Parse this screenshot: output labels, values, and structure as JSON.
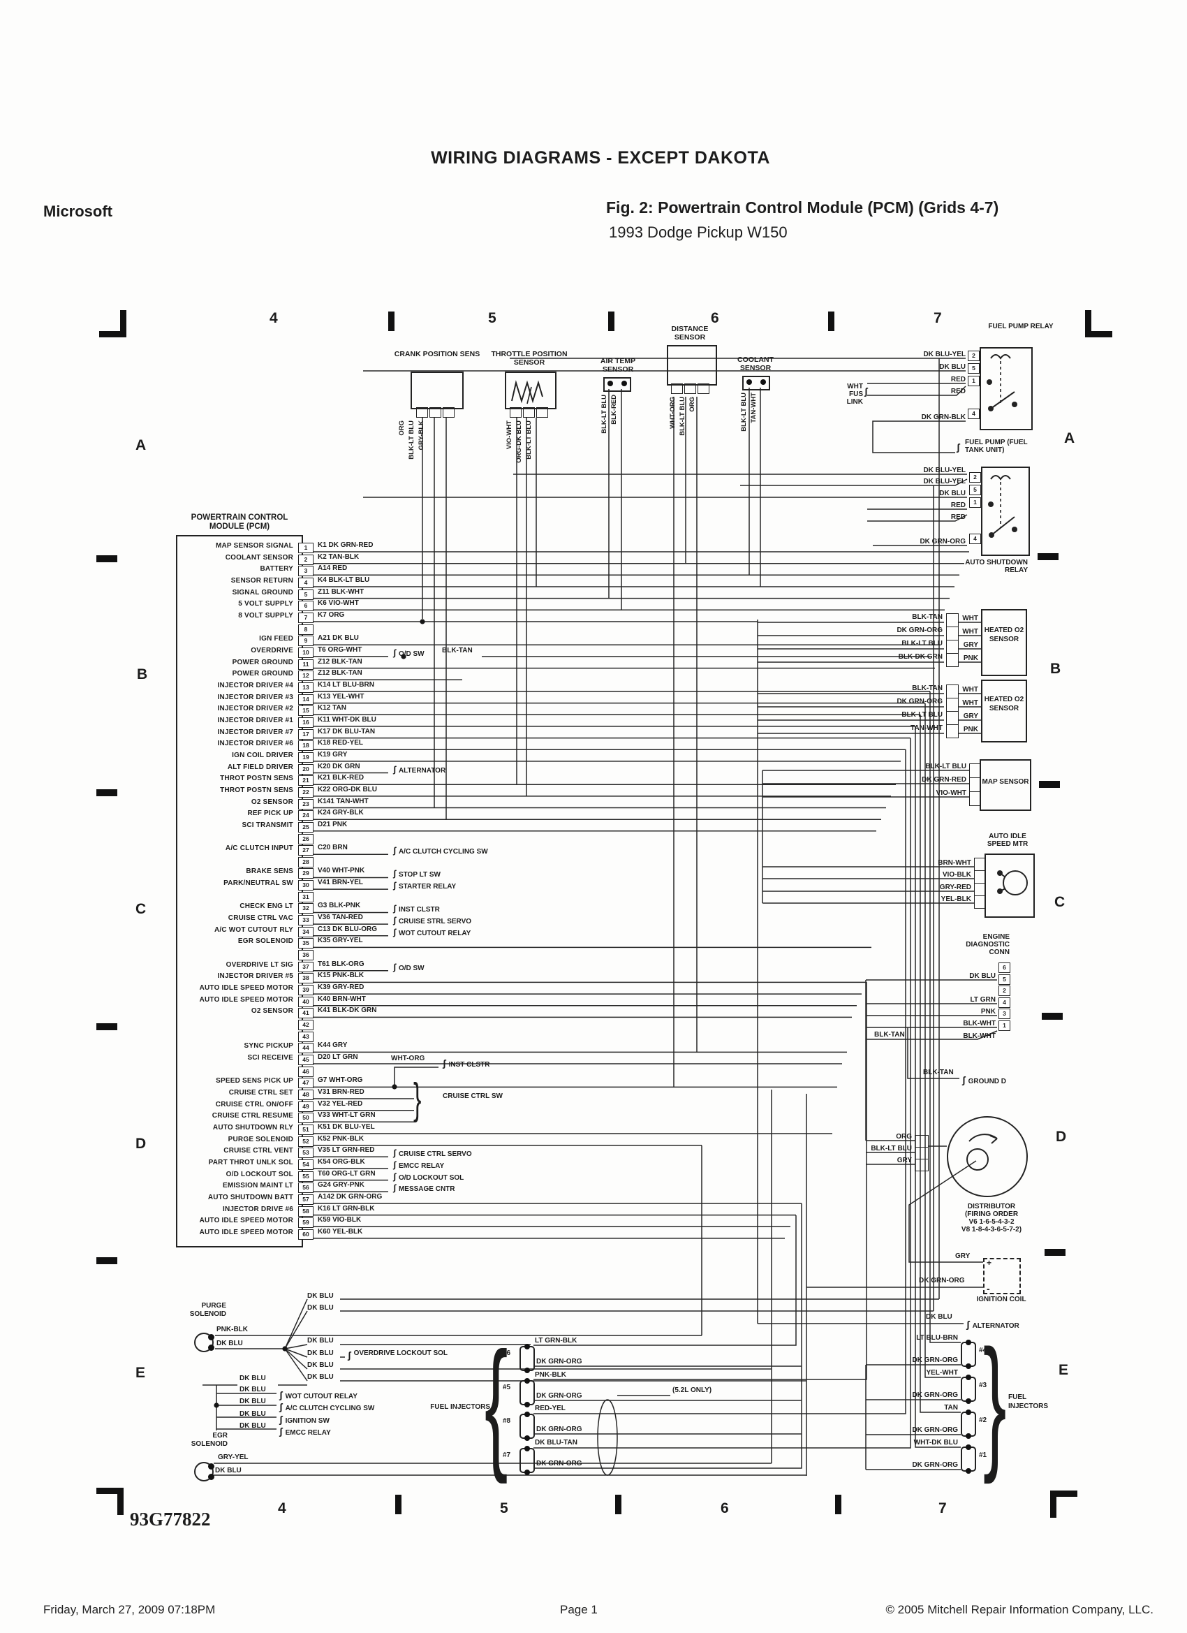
{
  "header": {
    "section_title": "WIRING DIAGRAMS - EXCEPT DAKOTA",
    "vendor": "Microsoft",
    "figure_title": "Fig. 2: Powertrain Control Module (PCM) (Grids 4-7)",
    "figure_subtitle": "1993 Dodge Pickup W150"
  },
  "footer": {
    "printed": "Friday, March 27, 2009  07:18PM",
    "page": "Page 1",
    "copyright": "© 2005 Mitchell Repair Information Company, LLC."
  },
  "diagram": {
    "doc_number": "93G77822",
    "grid": {
      "top": [
        "4",
        "5",
        "6",
        "7"
      ],
      "bottom": [
        "4",
        "5",
        "6",
        "7"
      ],
      "left": [
        "A",
        "B",
        "C",
        "D",
        "E"
      ],
      "right": [
        "A",
        "B",
        "C",
        "D",
        "E"
      ]
    },
    "pcm": {
      "title": "POWERTRAIN CONTROL MODULE (PCM)",
      "od_extra_wire": "BLK-TAN",
      "speed_branch": {
        "wire": "WHT-ORG",
        "dest": "INST CLSTR"
      },
      "cruise_sw_dest": "CRUISE CTRL SW",
      "pins": [
        {
          "n": "1",
          "label": "MAP SENSOR SIGNAL",
          "wire": "K1 DK GRN-RED",
          "dest": ""
        },
        {
          "n": "2",
          "label": "COOLANT SENSOR",
          "wire": "K2 TAN-BLK",
          "dest": ""
        },
        {
          "n": "3",
          "label": "BATTERY",
          "wire": "A14 RED",
          "dest": ""
        },
        {
          "n": "4",
          "label": "SENSOR RETURN",
          "wire": "K4 BLK-LT BLU",
          "dest": ""
        },
        {
          "n": "5",
          "label": "SIGNAL GROUND",
          "wire": "Z11 BLK-WHT",
          "dest": ""
        },
        {
          "n": "6",
          "label": "5 VOLT SUPPLY",
          "wire": "K6 VIO-WHT",
          "dest": ""
        },
        {
          "n": "7",
          "label": "8 VOLT SUPPLY",
          "wire": "K7 ORG",
          "dest": ""
        },
        {
          "n": "8",
          "label": "",
          "wire": "",
          "dest": ""
        },
        {
          "n": "9",
          "label": "IGN FEED",
          "wire": "A21 DK BLU",
          "dest": ""
        },
        {
          "n": "10",
          "label": "OVERDRIVE",
          "wire": "T6 ORG-WHT",
          "dest": "O/D SW"
        },
        {
          "n": "11",
          "label": "POWER GROUND",
          "wire": "Z12 BLK-TAN",
          "dest": ""
        },
        {
          "n": "12",
          "label": "POWER GROUND",
          "wire": "Z12 BLK-TAN",
          "dest": ""
        },
        {
          "n": "13",
          "label": "INJECTOR DRIVER #4",
          "wire": "K14 LT BLU-BRN",
          "dest": ""
        },
        {
          "n": "14",
          "label": "INJECTOR DRIVER #3",
          "wire": "K13 YEL-WHT",
          "dest": ""
        },
        {
          "n": "15",
          "label": "INJECTOR DRIVER #2",
          "wire": "K12 TAN",
          "dest": ""
        },
        {
          "n": "16",
          "label": "INJECTOR DRIVER #1",
          "wire": "K11 WHT-DK BLU",
          "dest": ""
        },
        {
          "n": "17",
          "label": "INJECTOR DRIVER #7",
          "wire": "K17 DK BLU-TAN",
          "dest": ""
        },
        {
          "n": "18",
          "label": "INJECTOR DRIVER #6",
          "wire": "K18 RED-YEL",
          "dest": ""
        },
        {
          "n": "19",
          "label": "IGN COIL DRIVER",
          "wire": "K19 GRY",
          "dest": ""
        },
        {
          "n": "20",
          "label": "ALT FIELD DRIVER",
          "wire": "K20 DK GRN",
          "dest": "ALTERNATOR"
        },
        {
          "n": "21",
          "label": "THROT POSTN SENS",
          "wire": "K21 BLK-RED",
          "dest": ""
        },
        {
          "n": "22",
          "label": "THROT POSTN SENS",
          "wire": "K22 ORG-DK BLU",
          "dest": ""
        },
        {
          "n": "23",
          "label": "O2 SENSOR",
          "wire": "K141 TAN-WHT",
          "dest": ""
        },
        {
          "n": "24",
          "label": "REF PICK UP",
          "wire": "K24 GRY-BLK",
          "dest": ""
        },
        {
          "n": "25",
          "label": "SCI TRANSMIT",
          "wire": "D21 PNK",
          "dest": ""
        },
        {
          "n": "26",
          "label": "",
          "wire": "",
          "dest": ""
        },
        {
          "n": "27",
          "label": "A/C CLUTCH INPUT",
          "wire": "C20 BRN",
          "dest": "A/C CLUTCH CYCLING SW"
        },
        {
          "n": "28",
          "label": "",
          "wire": "",
          "dest": ""
        },
        {
          "n": "29",
          "label": "BRAKE SENS",
          "wire": "V40 WHT-PNK",
          "dest": "STOP LT SW"
        },
        {
          "n": "30",
          "label": "PARK/NEUTRAL SW",
          "wire": "V41 BRN-YEL",
          "dest": "STARTER RELAY"
        },
        {
          "n": "31",
          "label": "",
          "wire": "",
          "dest": ""
        },
        {
          "n": "32",
          "label": "CHECK ENG LT",
          "wire": "G3 BLK-PNK",
          "dest": "INST CLSTR"
        },
        {
          "n": "33",
          "label": "CRUISE CTRL VAC",
          "wire": "V36 TAN-RED",
          "dest": "CRUISE STRL SERVO"
        },
        {
          "n": "34",
          "label": "A/C WOT CUTOUT RLY",
          "wire": "C13 DK BLU-ORG",
          "dest": "WOT CUTOUT RELAY"
        },
        {
          "n": "35",
          "label": "EGR SOLENOID",
          "wire": "K35 GRY-YEL",
          "dest": ""
        },
        {
          "n": "36",
          "label": "",
          "wire": "",
          "dest": ""
        },
        {
          "n": "37",
          "label": "OVERDRIVE LT SIG",
          "wire": "T61 BLK-ORG",
          "dest": "O/D SW"
        },
        {
          "n": "38",
          "label": "INJECTOR DRIVER #5",
          "wire": "K15 PNK-BLK",
          "dest": ""
        },
        {
          "n": "39",
          "label": "AUTO IDLE SPEED MOTOR",
          "wire": "K39 GRY-RED",
          "dest": ""
        },
        {
          "n": "40",
          "label": "AUTO IDLE SPEED MOTOR",
          "wire": "K40 BRN-WHT",
          "dest": ""
        },
        {
          "n": "41",
          "label": "O2 SENSOR",
          "wire": "K41 BLK-DK GRN",
          "dest": ""
        },
        {
          "n": "42",
          "label": "",
          "wire": "",
          "dest": ""
        },
        {
          "n": "43",
          "label": "",
          "wire": "",
          "dest": ""
        },
        {
          "n": "44",
          "label": "SYNC PICKUP",
          "wire": "K44 GRY",
          "dest": ""
        },
        {
          "n": "45",
          "label": "SCI RECEIVE",
          "wire": "D20 LT GRN",
          "dest": ""
        },
        {
          "n": "46",
          "label": "",
          "wire": "",
          "dest": ""
        },
        {
          "n": "47",
          "label": "SPEED SENS PICK UP",
          "wire": "G7 WHT-ORG",
          "dest": ""
        },
        {
          "n": "48",
          "label": "CRUISE CTRL SET",
          "wire": "V31 BRN-RED",
          "dest": ""
        },
        {
          "n": "49",
          "label": "CRUISE CTRL ON/OFF",
          "wire": "V32 YEL-RED",
          "dest": ""
        },
        {
          "n": "50",
          "label": "CRUISE CTRL RESUME",
          "wire": "V33 WHT-LT GRN",
          "dest": ""
        },
        {
          "n": "51",
          "label": "AUTO SHUTDOWN RLY",
          "wire": "K51 DK BLU-YEL",
          "dest": ""
        },
        {
          "n": "52",
          "label": "PURGE SOLENOID",
          "wire": "K52 PNK-BLK",
          "dest": ""
        },
        {
          "n": "53",
          "label": "CRUISE CTRL VENT",
          "wire": "V35 LT GRN-RED",
          "dest": "CRUISE CTRL SERVO"
        },
        {
          "n": "54",
          "label": "PART THROT UNLK SOL",
          "wire": "K54 ORG-BLK",
          "dest": "EMCC RELAY"
        },
        {
          "n": "55",
          "label": "O/D LOCKOUT SOL",
          "wire": "T60 ORG-LT GRN",
          "dest": "O/D LOCKOUT SOL"
        },
        {
          "n": "56",
          "label": "EMISSION MAINT LT",
          "wire": "G24 GRY-PNK",
          "dest": "MESSAGE CNTR"
        },
        {
          "n": "57",
          "label": "AUTO SHUTDOWN BATT",
          "wire": "A142 DK GRN-ORG",
          "dest": ""
        },
        {
          "n": "58",
          "label": "INJECTOR DRIVE #6",
          "wire": "K16 LT GRN-BLK",
          "dest": ""
        },
        {
          "n": "59",
          "label": "AUTO IDLE SPEED MOTOR",
          "wire": "K59 VIO-BLK",
          "dest": ""
        },
        {
          "n": "60",
          "label": "AUTO IDLE SPEED MOTOR",
          "wire": "K60 YEL-BLK",
          "dest": ""
        }
      ]
    },
    "sensors": {
      "crank": {
        "name": "CRANK POSITION SENS",
        "wires": [
          "ORG",
          "BLK-LT BLU",
          "GRY-BLK"
        ]
      },
      "throttle": {
        "name": "THROTTLE POSITION SENSOR",
        "wires": [
          "VIO-WHT",
          "ORG-DK BLU",
          "BLK-LT BLU"
        ]
      },
      "airtemp": {
        "name": "AIR TEMP SENSOR",
        "wires": [
          "BLK-LT BLU",
          "BLK-RED"
        ]
      },
      "distance": {
        "name": "DISTANCE SENSOR",
        "wires": [
          "WHT-ORG",
          "BLK-LT BLU",
          "ORG"
        ]
      },
      "coolant": {
        "name": "COOLANT SENSOR",
        "wires": [
          "BLK-LT BLU",
          "TAN-WHT"
        ]
      }
    },
    "right": {
      "fuel_pump_relay": {
        "label": "FUEL PUMP RELAY",
        "pins": [
          "2",
          "5",
          "1",
          "4"
        ],
        "wires": [
          "DK BLU-YEL",
          "DK BLU",
          "RED",
          "RED",
          "DK GRN-BLK"
        ],
        "fuse_note": "WHT FUS LINK"
      },
      "fuel_pump_dest": "FUEL PUMP (FUEL TANK UNIT)",
      "asd_relay": {
        "label": "AUTO SHUTDOWN RELAY",
        "pins": [
          "2",
          "5",
          "1",
          "4"
        ],
        "wires": [
          "DK BLU-YEL",
          "DK BLU-YEL",
          "DK BLU",
          "RED",
          "RED",
          "DK GRN-ORG"
        ]
      },
      "o2_1": {
        "label": "HEATED O2 SENSOR",
        "left_wires": [
          "BLK-TAN",
          "DK GRN-ORG",
          "BLK-LT BLU",
          "BLK-DK GRN"
        ],
        "right_wires": [
          "WHT",
          "WHT",
          "GRY",
          "PNK"
        ]
      },
      "o2_2": {
        "label": "HEATED O2 SENSOR",
        "left_wires": [
          "BLK-TAN",
          "DK GRN-ORG",
          "BLK-LT BLU",
          "TAN-WHT"
        ],
        "right_wires": [
          "WHT",
          "WHT",
          "GRY",
          "PNK"
        ]
      },
      "map_sensor": {
        "label": "MAP SENSOR",
        "wires": [
          "BLK-LT BLU",
          "DK GRN-RED",
          "VIO-WHT"
        ]
      },
      "idle_motor": {
        "label": "AUTO IDLE SPEED MTR",
        "wires": [
          "BRN-WHT",
          "VIO-BLK",
          "GRY-RED",
          "YEL-BLK"
        ]
      },
      "diag_conn": {
        "label": "ENGINE DIAGNOSTIC CONN",
        "pins": [
          "6",
          "5",
          "2",
          "4",
          "3",
          "1"
        ],
        "wires": [
          "DK BLU",
          "LT GRN",
          "PNK",
          "BLK-WHT",
          "BLK-WHT"
        ],
        "extra_wire": "BLK-TAN"
      },
      "ground": {
        "wire": "BLK-TAN",
        "dest": "GROUND D"
      },
      "distributor": {
        "label": "DISTRIBUTOR",
        "firing1": "(FIRING ORDER",
        "firing2": "V6 1-6-5-4-3-2",
        "firing3": "V8 1-8-4-3-6-5-7-2)",
        "wires": [
          "ORG",
          "BLK-LT BLU",
          "GRY"
        ]
      },
      "ignition_coil": {
        "label": "IGNITION COIL",
        "wire_top": "GRY",
        "wire_bottom": "DK GRN-ORG",
        "terminals": [
          "+",
          "-"
        ]
      },
      "alternator": {
        "wire": "DK BLU",
        "dest": "ALTERNATOR"
      }
    },
    "injectors": {
      "label": "FUEL INJECTORS",
      "note": "(5.2L ONLY)",
      "left_bank": [
        {
          "id": "#6",
          "top": "LT GRN-BLK",
          "bottom": "DK GRN-ORG"
        },
        {
          "id": "#5",
          "top": "PNK-BLK",
          "bottom": "DK GRN-ORG"
        },
        {
          "id": "#8",
          "top": "RED-YEL",
          "bottom": "DK GRN-ORG"
        },
        {
          "id": "#7",
          "top": "DK BLU-TAN",
          "bottom": "DK GRN-ORG"
        }
      ],
      "right_bank": [
        {
          "id": "#4",
          "top": "LT BLU-BRN",
          "bottom": "DK GRN-ORG"
        },
        {
          "id": "#3",
          "top": "YEL-WHT",
          "bottom": "DK GRN-ORG"
        },
        {
          "id": "#2",
          "top": "TAN",
          "bottom": "DK GRN-ORG"
        },
        {
          "id": "#1",
          "top": "WHT-DK BLU",
          "bottom": "DK GRN-ORG"
        }
      ]
    },
    "bottom_left": {
      "purge": {
        "label": "PURGE SOLENOID",
        "wires": [
          "PNK-BLK",
          "DK BLU"
        ]
      },
      "egr": {
        "label": "EGR SOLENOID",
        "wires": [
          "GRY-YEL",
          "DK BLU"
        ]
      },
      "dk_blu_stack": [
        "DK BLU",
        "DK BLU",
        "DK BLU",
        "DK BLU",
        "DK BLU",
        "DK BLU"
      ],
      "od_lockout_dest": "OVERDRIVE LOCKOUT SOL",
      "feed_wire": "DK BLU",
      "branches": [
        {
          "wire": "DK BLU",
          "dest": "WOT CUTOUT RELAY"
        },
        {
          "wire": "DK BLU",
          "dest": "A/C CLUTCH CYCLING SW"
        },
        {
          "wire": "DK BLU",
          "dest": "IGNITION SW"
        },
        {
          "wire": "DK BLU",
          "dest": "EMCC RELAY"
        }
      ]
    }
  }
}
